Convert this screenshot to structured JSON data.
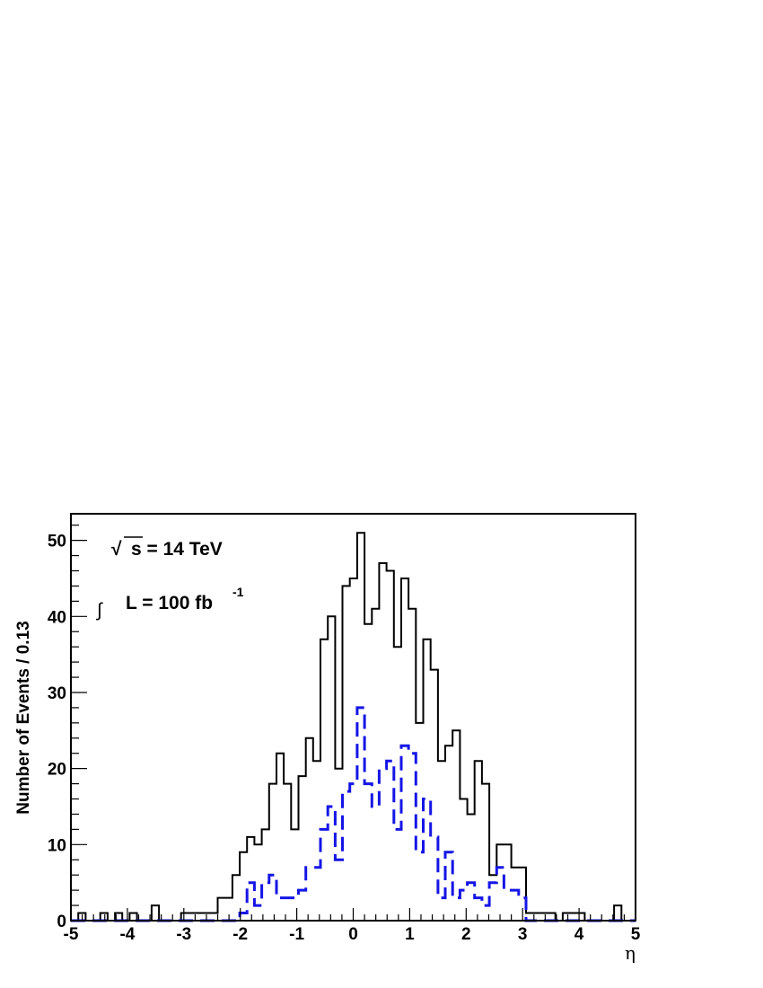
{
  "chart_data": {
    "type": "histogram",
    "xlabel": "η",
    "ylabel": "Number of Events / 0.13",
    "xlim": [
      -5,
      5
    ],
    "ylim": [
      0,
      53.5
    ],
    "bin_edges_start": -5,
    "bin_width": 0.13,
    "x_ticks": [
      "-5",
      "-4",
      "-3",
      "-2",
      "-1",
      "0",
      "1",
      "2",
      "3",
      "4",
      "5"
    ],
    "y_ticks": [
      "0",
      "10",
      "20",
      "30",
      "40",
      "50"
    ],
    "annotations": {
      "energy": {
        "sqrt_symbol": "√",
        "text": "s = 14 TeV"
      },
      "luminosity": {
        "integral_symbol": "∫",
        "text": "L = 100 fb",
        "superscript": "-1"
      }
    },
    "series": [
      {
        "style": "solid",
        "color": "#000000",
        "values": [
          0,
          1,
          0,
          0,
          1,
          0,
          1,
          0,
          1,
          0,
          0,
          2,
          0,
          0,
          0,
          1,
          1,
          1,
          1,
          1,
          3,
          3,
          6,
          9,
          11,
          10,
          12,
          18,
          22,
          18,
          12,
          19,
          24,
          21,
          37,
          40,
          20,
          44,
          45,
          51,
          39,
          41,
          47,
          46,
          36,
          45,
          41,
          26,
          37,
          33,
          21,
          23,
          25,
          16,
          14,
          21,
          18,
          6,
          10,
          10,
          7,
          7,
          1,
          1,
          1,
          1,
          0,
          1,
          1,
          1,
          0,
          0,
          0,
          0,
          2,
          0,
          0,
          0,
          0,
          0,
          0,
          0,
          0
        ]
      },
      {
        "style": "dashed",
        "color": "#1515e6",
        "values": [
          0,
          0,
          0,
          0,
          0,
          0,
          0,
          0,
          0,
          0,
          0,
          0,
          0,
          0,
          0,
          0,
          0,
          0,
          0,
          0,
          0,
          0,
          0,
          1,
          5,
          2,
          5,
          6,
          3,
          3,
          3,
          4,
          7,
          7,
          12,
          15,
          8,
          17,
          18,
          28,
          18,
          15,
          20,
          21,
          12,
          23,
          22,
          9,
          16,
          11,
          3,
          9,
          3,
          4,
          5,
          3,
          2,
          5,
          7,
          4,
          4,
          3,
          0,
          0,
          0,
          0,
          0,
          0,
          0,
          0,
          0,
          0,
          0,
          0,
          0,
          0,
          0,
          0,
          0,
          0,
          0,
          0,
          0
        ]
      }
    ]
  }
}
